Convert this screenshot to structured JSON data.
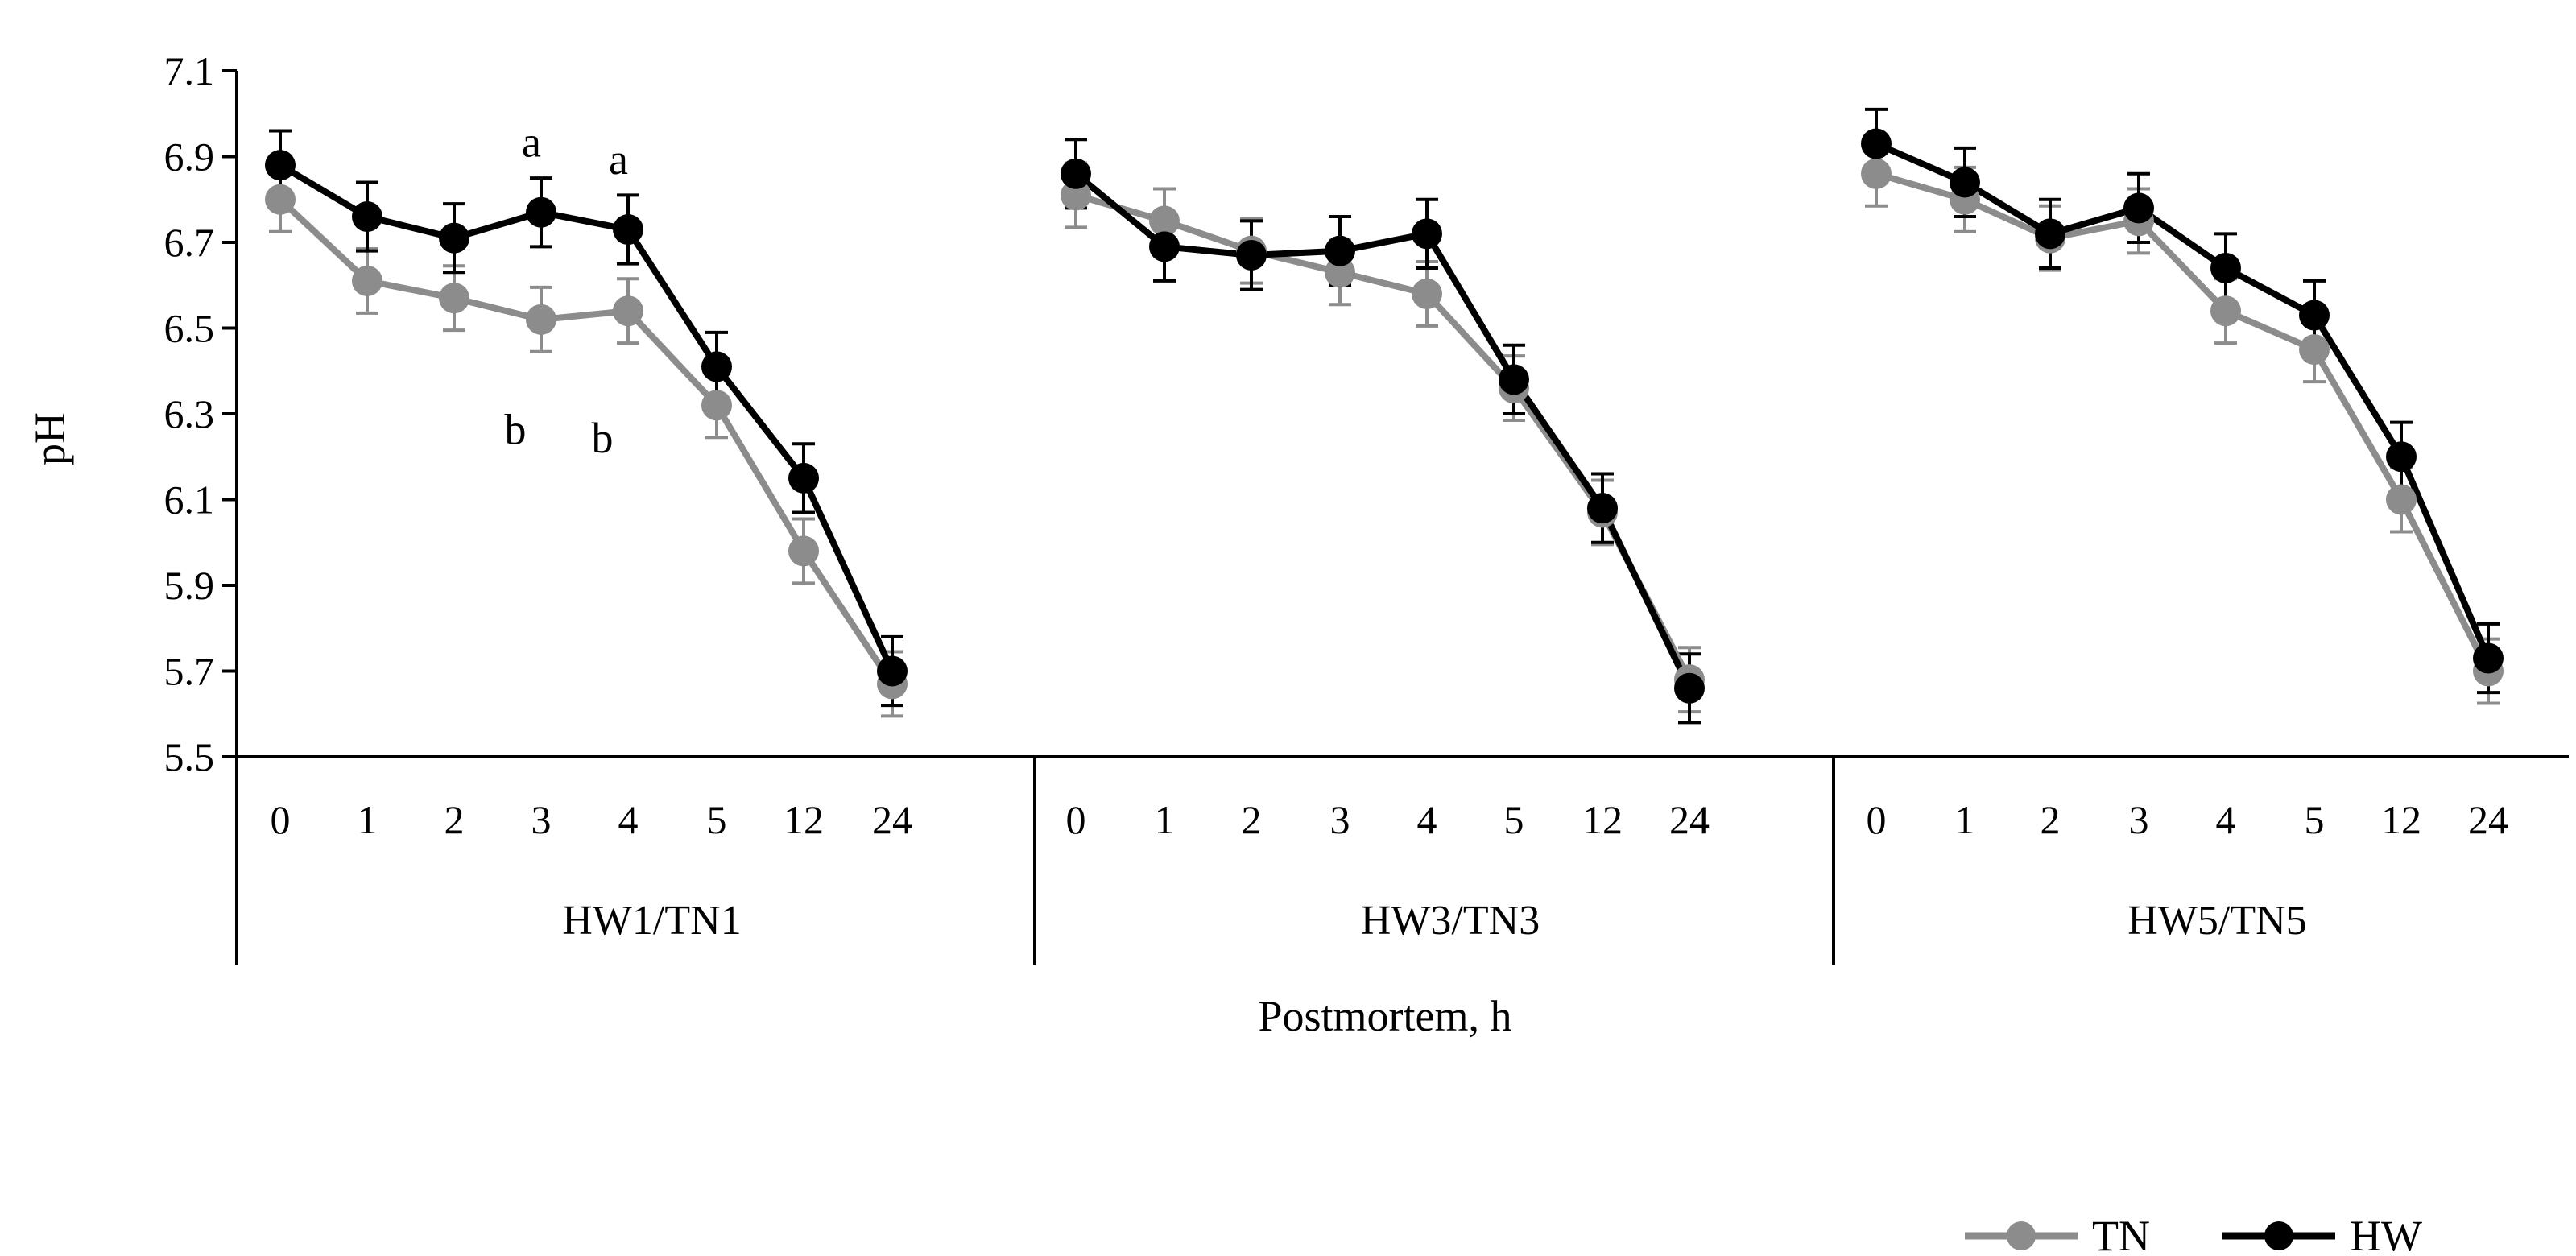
{
  "chart_data": {
    "type": "line",
    "ylabel": "pH",
    "xlabel": "Postmortem, h",
    "ylim": [
      5.5,
      7.1
    ],
    "yticks": [
      "5.5",
      "5.7",
      "5.9",
      "6.1",
      "6.3",
      "6.5",
      "6.7",
      "6.9",
      "7.1"
    ],
    "grid": false,
    "legend_position": "bottom-right",
    "colors": {
      "TN": "#8c8c8c",
      "HW": "#000000"
    },
    "groups": [
      {
        "label": "HW1/TN1",
        "x": [
          "0",
          "1",
          "2",
          "3",
          "4",
          "5",
          "12",
          "24"
        ],
        "series": [
          {
            "name": "TN",
            "values": [
              6.8,
              6.61,
              6.57,
              6.52,
              6.54,
              6.32,
              5.98,
              5.67
            ],
            "error": [
              0.075,
              0.075,
              0.075,
              0.075,
              0.075,
              0.075,
              0.075,
              0.075
            ]
          },
          {
            "name": "HW",
            "values": [
              6.88,
              6.76,
              6.71,
              6.77,
              6.73,
              6.41,
              6.15,
              5.7
            ],
            "error": [
              0.08,
              0.08,
              0.08,
              0.08,
              0.08,
              0.08,
              0.08,
              0.08
            ]
          }
        ],
        "annotations": [
          {
            "text": "a",
            "x": "3",
            "y": 6.9
          },
          {
            "text": "a",
            "x": "4",
            "y": 6.86
          },
          {
            "text": "b",
            "x": "3",
            "y": 6.23
          },
          {
            "text": "b",
            "x": "4",
            "y": 6.21
          }
        ]
      },
      {
        "label": "HW3/TN3",
        "x": [
          "0",
          "1",
          "2",
          "3",
          "4",
          "5",
          "12",
          "24"
        ],
        "series": [
          {
            "name": "TN",
            "values": [
              6.81,
              6.75,
              6.68,
              6.63,
              6.58,
              6.36,
              6.07,
              5.68
            ],
            "error": [
              0.075,
              0.075,
              0.075,
              0.075,
              0.075,
              0.075,
              0.075,
              0.075
            ]
          },
          {
            "name": "HW",
            "values": [
              6.86,
              6.69,
              6.67,
              6.68,
              6.72,
              6.38,
              6.08,
              5.66
            ],
            "error": [
              0.08,
              0.08,
              0.08,
              0.08,
              0.08,
              0.08,
              0.08,
              0.08
            ]
          }
        ],
        "annotations": []
      },
      {
        "label": "HW5/TN5",
        "x": [
          "0",
          "1",
          "2",
          "3",
          "4",
          "5",
          "12",
          "24"
        ],
        "series": [
          {
            "name": "TN",
            "values": [
              6.86,
              6.8,
              6.71,
              6.75,
              6.54,
              6.45,
              6.1,
              5.7
            ],
            "error": [
              0.075,
              0.075,
              0.075,
              0.075,
              0.075,
              0.075,
              0.075,
              0.075
            ]
          },
          {
            "name": "HW",
            "values": [
              6.93,
              6.84,
              6.72,
              6.78,
              6.64,
              6.53,
              6.2,
              5.73
            ],
            "error": [
              0.08,
              0.08,
              0.08,
              0.08,
              0.08,
              0.08,
              0.08,
              0.08
            ]
          }
        ],
        "annotations": []
      }
    ],
    "legend": [
      {
        "name": "TN"
      },
      {
        "name": "HW"
      }
    ]
  }
}
